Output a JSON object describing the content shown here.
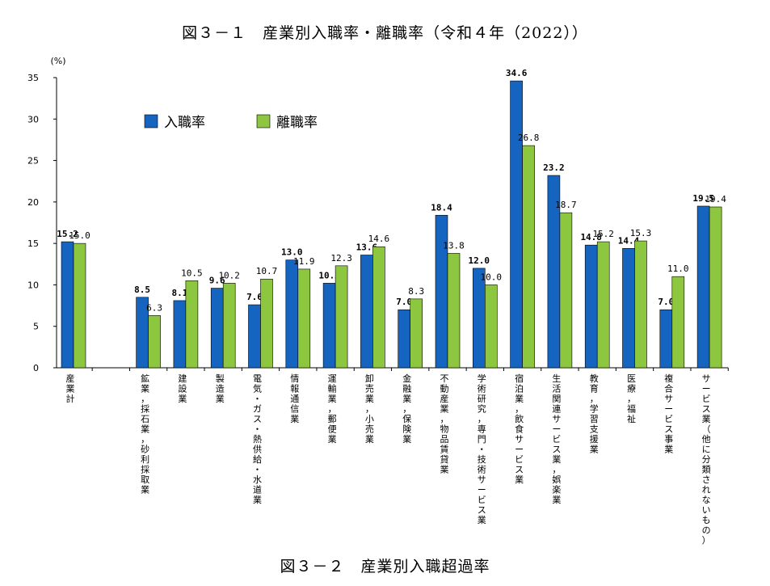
{
  "figure_title_top": "図３－１　産業別入職率・離職率（令和４年（2022））",
  "figure_title_bottom": "図３－２　産業別入職超過率",
  "colors": {
    "series1": "#1565c0",
    "series2": "#8dc63f",
    "axis": "#000000"
  },
  "chart_data": {
    "type": "bar",
    "title": "図３－１　産業別入職率・離職率（令和４年（2022））",
    "ylabel": "(%)",
    "ylim": [
      0,
      35
    ],
    "yticks": [
      0,
      5,
      10,
      15,
      20,
      25,
      30,
      35
    ],
    "grid": false,
    "legend_position": "top-left",
    "categories": [
      "産業計",
      "",
      "鉱業，採石業，砂利採取業",
      "建設業",
      "製造業",
      "電気・ガス・熱供給・水道業",
      "情報通信業",
      "運輸業，郵便業",
      "卸売業，小売業",
      "金融業，保険業",
      "不動産業，物品賃貸業",
      "学術研究，専門・技術サービス業",
      "宿泊業，飲食サービス業",
      "生活関連サービス業，娯楽業",
      "教育，学習支援業",
      "医療，福祉",
      "複合サービス事業",
      "サービス業（他に分類されないもの）"
    ],
    "series": [
      {
        "name": "入職率",
        "color": "#1565c0",
        "values": [
          15.2,
          null,
          8.5,
          8.1,
          9.6,
          7.6,
          13.0,
          10.2,
          13.6,
          7.0,
          18.4,
          12.0,
          34.6,
          23.2,
          14.8,
          14.4,
          7.0,
          19.5
        ],
        "labels": [
          "15.2",
          "",
          "8.5",
          "8.1",
          "9.6",
          "7.6",
          "13.0",
          "10.2",
          "13.6",
          "7.0",
          "18.4",
          "12.0",
          "34.6",
          "23.2",
          "14.8",
          "14.4",
          "7.0",
          "19.5"
        ]
      },
      {
        "name": "離職率",
        "color": "#8dc63f",
        "values": [
          15.0,
          null,
          6.3,
          10.5,
          10.2,
          10.7,
          11.9,
          12.3,
          14.6,
          8.3,
          13.8,
          10.0,
          26.8,
          18.7,
          15.2,
          15.3,
          11.0,
          19.4
        ],
        "labels": [
          "15.0",
          "",
          "6.3",
          "10.5",
          "10.2",
          "10.7",
          "11.9",
          "12.3",
          "14.6",
          "8.3",
          "13.8",
          "10.0",
          "26.8",
          "18.7",
          "15.2",
          "15.3",
          "11.0",
          "19.4"
        ]
      }
    ]
  }
}
